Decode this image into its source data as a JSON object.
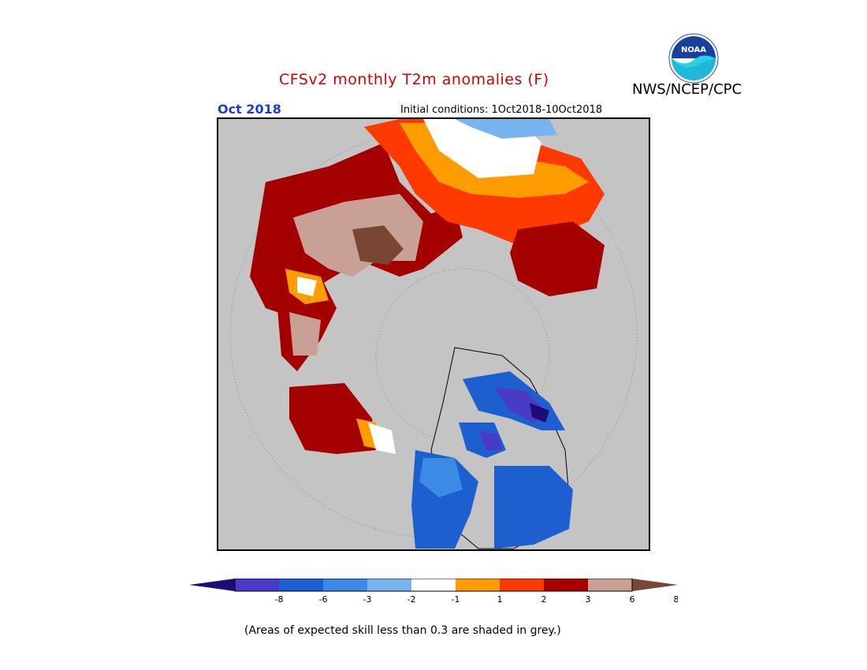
{
  "header": {
    "title": "CFSv2 monthly T2m anomalies (F)",
    "agency": "NWS/NCEP/CPC",
    "logo_text": "NOAA",
    "month": "Oct 2018",
    "initial_conditions": "Initial conditions: 1Oct2018-10Oct2018"
  },
  "legend": {
    "tick_labels": [
      "-8",
      "-6",
      "-3",
      "-2",
      "-1",
      "1",
      "2",
      "3",
      "6",
      "8"
    ],
    "colors": [
      "#1e0a78",
      "#4a3bc7",
      "#1e5fd0",
      "#3b8be6",
      "#78b4f0",
      "#ffffff",
      "#ff9d00",
      "#ff3a00",
      "#a50000",
      "#c8a096",
      "#784632"
    ],
    "footnote": "(Areas of expected skill less than 0.3 are shaded in grey.)"
  },
  "map": {
    "projection": "north-polar-stereographic",
    "background_color": "#c4c4c4",
    "regions": [
      {
        "name": "siberia-warm-core",
        "category": "8"
      },
      {
        "name": "russia-arctic-coast-warm",
        "category": "6"
      },
      {
        "name": "alaska-warm",
        "category": "6"
      },
      {
        "name": "eastern-canada-cold",
        "category": "-6"
      },
      {
        "name": "hudson-bay-cold",
        "category": "-3"
      },
      {
        "name": "greenland-no-skill",
        "category": "grey"
      }
    ]
  }
}
